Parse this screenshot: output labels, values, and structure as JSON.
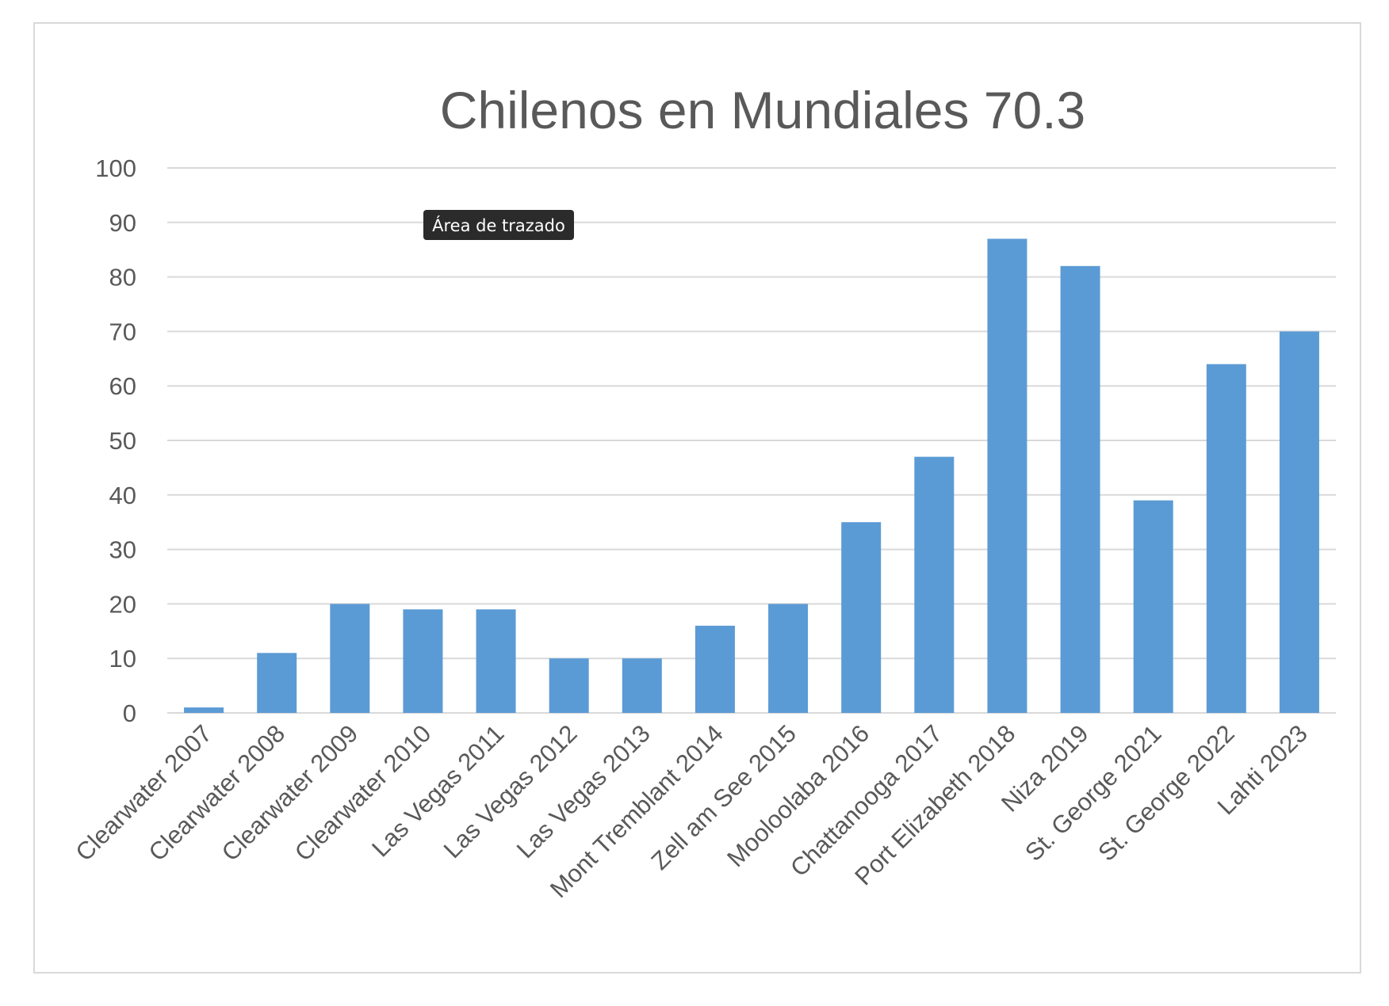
{
  "tooltip": {
    "text": "Área de trazado"
  },
  "colors": {
    "bar": "#5B9BD5",
    "grid": "#D9D9D9",
    "text": "#595959",
    "border": "#D9D9D9",
    "tooltip_bg": "#2B2B2B",
    "tooltip_text": "#FFFFFF"
  },
  "chart_data": {
    "type": "bar",
    "title": "Chilenos en Mundiales 70.3",
    "xlabel": "",
    "ylabel": "",
    "ylim": [
      0,
      100
    ],
    "yticks": [
      0,
      10,
      20,
      30,
      40,
      50,
      60,
      70,
      80,
      90,
      100
    ],
    "grid": true,
    "legend": "none",
    "categories": [
      "Clearwater 2007",
      "Clearwater 2008",
      "Clearwater 2009",
      "Clearwater 2010",
      "Las Vegas 2011",
      "Las Vegas 2012",
      "Las Vegas 2013",
      "Mont Tremblant 2014",
      "Zell am See 2015",
      "Mooloolaba 2016",
      "Chattanooga 2017",
      "Port Elizabeth 2018",
      "Niza 2019",
      "St. George 2021",
      "St. George 2022",
      "Lahti 2023"
    ],
    "values": [
      1,
      11,
      20,
      19,
      19,
      10,
      10,
      16,
      20,
      35,
      47,
      87,
      82,
      39,
      64,
      70
    ]
  }
}
